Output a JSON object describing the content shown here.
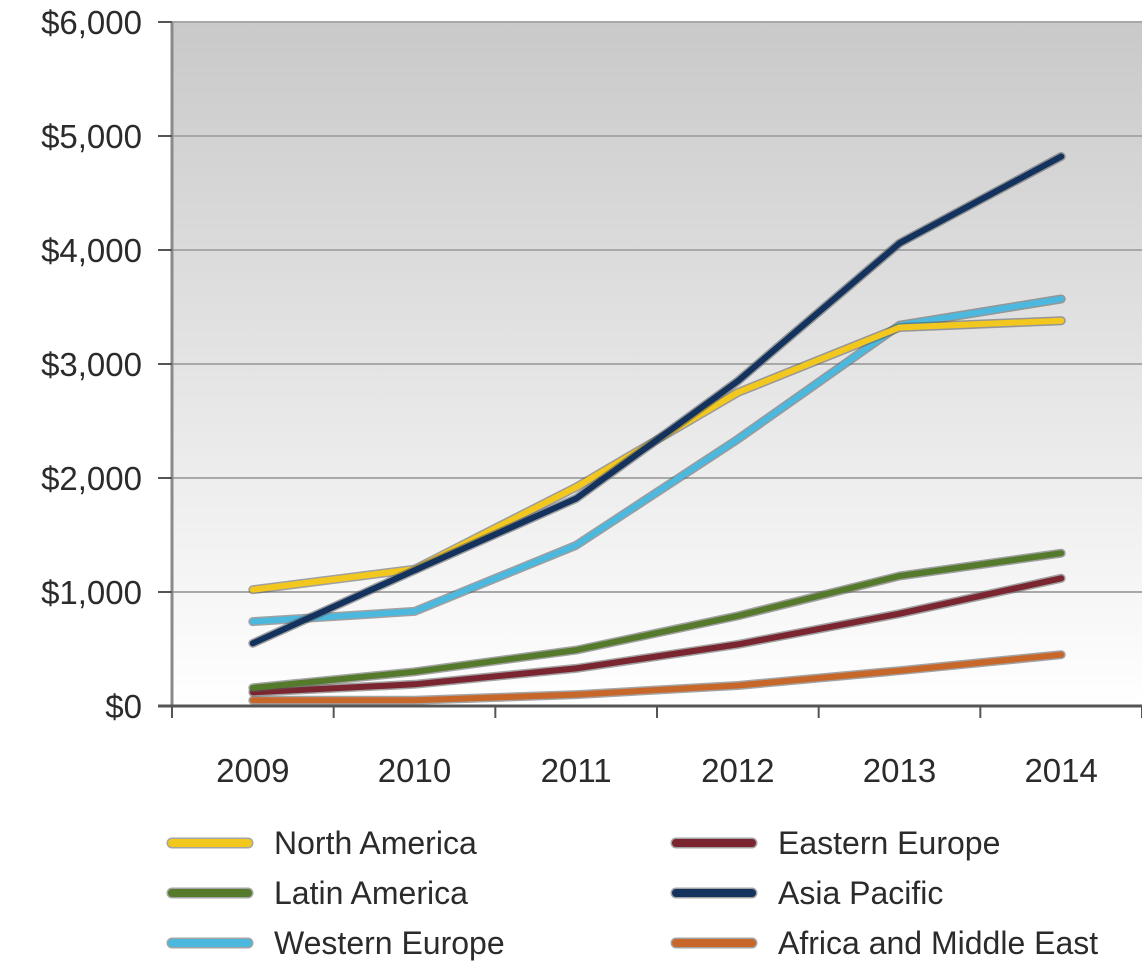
{
  "chart_data": {
    "type": "line",
    "categories": [
      "2009",
      "2010",
      "2011",
      "2012",
      "2013",
      "2014"
    ],
    "ylim": [
      0,
      6000
    ],
    "y_ticks": [
      0,
      1000,
      2000,
      3000,
      4000,
      5000,
      6000
    ],
    "y_tick_labels": [
      "$0",
      "$1,000",
      "$2,000",
      "$3,000",
      "$4,000",
      "$5,000",
      "$6,000"
    ],
    "grid": "horizontal",
    "legend_position": "bottom",
    "series": [
      {
        "name": "North America",
        "color": "#F2C81E",
        "values": [
          1020,
          1200,
          1920,
          2750,
          3320,
          3380
        ]
      },
      {
        "name": "Latin America",
        "color": "#557A2C",
        "values": [
          160,
          300,
          490,
          790,
          1140,
          1340
        ]
      },
      {
        "name": "Western Europe",
        "color": "#4CB8DE",
        "values": [
          740,
          830,
          1410,
          2340,
          3340,
          3570
        ]
      },
      {
        "name": "Eastern Europe",
        "color": "#7A2530",
        "values": [
          120,
          190,
          330,
          540,
          810,
          1120
        ]
      },
      {
        "name": "Asia Pacific",
        "color": "#13335E",
        "values": [
          550,
          1190,
          1820,
          2850,
          4060,
          4820
        ]
      },
      {
        "name": "Africa and Middle East",
        "color": "#C8672A",
        "values": [
          50,
          50,
          100,
          180,
          310,
          450
        ]
      }
    ]
  }
}
